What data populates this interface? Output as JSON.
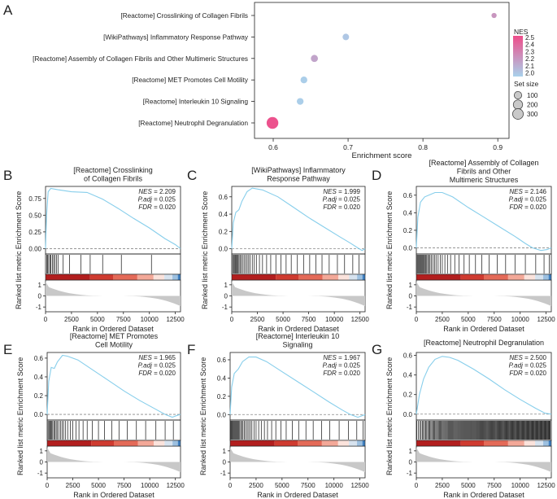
{
  "panel_letters": [
    "A",
    "B",
    "C",
    "D",
    "E",
    "F",
    "G"
  ],
  "colors": {
    "line": "#87ceeb",
    "nes_low": "#a9d2ec",
    "nes_high": "#ee4d8a",
    "axis": "#222222",
    "zero_line": "#888888",
    "heat": [
      "#b21e1e",
      "#cf3b30",
      "#e46a58",
      "#f3a898",
      "#fbe3dc",
      "#d7e3ef",
      "#9cc0e0",
      "#3f7fc0"
    ],
    "metric_fill": "#c8c8c8"
  },
  "chart_data": [
    {
      "id": "A",
      "type": "scatter",
      "title": "",
      "xlabel": "Enrichment score",
      "ylabel": "",
      "xlim": [
        0.575,
        0.915
      ],
      "xticks": [
        0.6,
        0.7,
        0.8,
        0.9
      ],
      "xtick_labels": [
        "0.6",
        "0.7",
        "0.8",
        "0.9"
      ],
      "categories": [
        "[Reactome] Crosslinking of Collagen Fibrils",
        "[WikiPathways] Inflammatory Response Pathway",
        "[Reactome] Assembly of Collagen Fibrils and Other Multimeric Structures",
        "[Reactome] MET Promotes Cell Motility",
        "[Reactome] Interleukin 10 Signaling",
        "[Reactome] Neutrophil Degranulation"
      ],
      "x": [
        0.895,
        0.697,
        0.655,
        0.641,
        0.636,
        0.599
      ],
      "nes": [
        2.209,
        1.999,
        2.146,
        1.965,
        1.967,
        2.5
      ],
      "set_size": [
        12,
        40,
        58,
        48,
        47,
        310
      ],
      "color_legend": {
        "title": "NES",
        "ticks": [
          2.5,
          2.4,
          2.3,
          2.2,
          2.1,
          2.0
        ],
        "tick_labels": [
          "2.5",
          "2.4",
          "2.3",
          "2.2",
          "2.1",
          "2.0"
        ],
        "range": [
          1.95,
          2.52
        ]
      },
      "size_legend": {
        "title": "Set size",
        "values": [
          100,
          200,
          300
        ],
        "labels": [
          "100",
          "200",
          "300"
        ]
      }
    },
    {
      "id": "B",
      "type": "line",
      "title_lines": [
        "[Reactome] Crosslinking",
        "of Collagen Fibrils"
      ],
      "ylabel": "Enrichment Score",
      "ylabel2": "Ranked list metric",
      "xlabel": "Rank in Ordered Dataset",
      "ylim": [
        -0.08,
        0.93
      ],
      "yticks": [
        0,
        0.25,
        0.5,
        0.75
      ],
      "ytick_labels": [
        "0.00",
        "0.25",
        "0.50",
        "0.75"
      ],
      "xlim": [
        0,
        13000
      ],
      "xticks": [
        0,
        2500,
        5000,
        7500,
        10000,
        12500
      ],
      "xtick_labels": [
        "0",
        "2500",
        "5000",
        "7500",
        "10000",
        "12500"
      ],
      "metric_ticks": [
        "1",
        "0",
        "-1"
      ],
      "stats": [
        {
          "label": "NES",
          "value": "2.209"
        },
        {
          "label": "P.adj",
          "value": "0.025"
        },
        {
          "label": "FDR",
          "value": "0.020"
        }
      ],
      "curve": [
        [
          0,
          0
        ],
        [
          100,
          0.5
        ],
        [
          250,
          0.85
        ],
        [
          500,
          0.9
        ],
        [
          1200,
          0.88
        ],
        [
          2500,
          0.85
        ],
        [
          4000,
          0.84
        ],
        [
          5500,
          0.74
        ],
        [
          7000,
          0.6
        ],
        [
          8500,
          0.45
        ],
        [
          10000,
          0.31
        ],
        [
          11500,
          0.15
        ],
        [
          12500,
          0.06
        ],
        [
          13000,
          0
        ]
      ],
      "hits": [
        110,
        200,
        300,
        420,
        520,
        650,
        780,
        900,
        1050,
        1200,
        1700,
        2300,
        3400,
        4300,
        5500,
        7300,
        10200
      ]
    },
    {
      "id": "C",
      "type": "line",
      "title_lines": [
        "[WikiPathways] Inflammatory",
        "Response Pathway"
      ],
      "ylabel": "Enrichment Score",
      "ylabel2": "Ranked list metric",
      "xlabel": "Rank in Ordered Dataset",
      "ylim": [
        -0.06,
        0.72
      ],
      "yticks": [
        0,
        0.2,
        0.4,
        0.6
      ],
      "ytick_labels": [
        "0.0",
        "0.2",
        "0.4",
        "0.6"
      ],
      "xlim": [
        0,
        13000
      ],
      "xticks": [
        0,
        2500,
        5000,
        7500,
        10000,
        12500
      ],
      "xtick_labels": [
        "0",
        "2500",
        "5000",
        "7500",
        "10000",
        "12500"
      ],
      "metric_ticks": [
        "1",
        "0",
        "-1"
      ],
      "stats": [
        {
          "label": "NES",
          "value": "1.999"
        },
        {
          "label": "P.adj",
          "value": "0.025"
        },
        {
          "label": "FDR",
          "value": "0.020"
        }
      ],
      "curve": [
        [
          0,
          0
        ],
        [
          150,
          0.3
        ],
        [
          400,
          0.42
        ],
        [
          700,
          0.45
        ],
        [
          1000,
          0.55
        ],
        [
          1500,
          0.66
        ],
        [
          2000,
          0.7
        ],
        [
          3000,
          0.68
        ],
        [
          4500,
          0.6
        ],
        [
          6000,
          0.48
        ],
        [
          7500,
          0.36
        ],
        [
          9000,
          0.25
        ],
        [
          10500,
          0.14
        ],
        [
          11500,
          0.07
        ],
        [
          12300,
          0.01
        ],
        [
          12700,
          -0.02
        ],
        [
          13000,
          0
        ]
      ],
      "hits": [
        90,
        180,
        260,
        350,
        420,
        500,
        580,
        700,
        800,
        920,
        1050,
        1200,
        1350,
        1500,
        1650,
        1800,
        2000,
        2200,
        2400,
        2700,
        3000,
        3400,
        3800,
        4300,
        4800,
        5300,
        5800,
        6400,
        7000,
        7600,
        8200,
        8800,
        9500,
        10300,
        11000,
        11800,
        12400
      ]
    },
    {
      "id": "D",
      "type": "line",
      "title_lines": [
        "[Reactome] Assembly of Collagen",
        "Fibrils and Other",
        "Multimeric Structures"
      ],
      "ylabel": "Enrichment Score",
      "ylabel2": "Ranked list metric",
      "xlabel": "Rank in Ordered Dataset",
      "ylim": [
        -0.07,
        0.7
      ],
      "yticks": [
        0,
        0.2,
        0.4,
        0.6
      ],
      "ytick_labels": [
        "0.0",
        "0.2",
        "0.4",
        "0.6"
      ],
      "xlim": [
        0,
        13000
      ],
      "xticks": [
        0,
        2500,
        5000,
        7500,
        10000,
        12500
      ],
      "xtick_labels": [
        "0",
        "2500",
        "5000",
        "7500",
        "10000",
        "12500"
      ],
      "metric_ticks": [
        "1",
        "0",
        "-1"
      ],
      "stats": [
        {
          "label": "NES",
          "value": "2.146"
        },
        {
          "label": "P.adj",
          "value": "0.025"
        },
        {
          "label": "FDR",
          "value": "0.020"
        }
      ],
      "curve": [
        [
          0,
          0
        ],
        [
          150,
          0.35
        ],
        [
          400,
          0.52
        ],
        [
          800,
          0.58
        ],
        [
          1200,
          0.6
        ],
        [
          1800,
          0.63
        ],
        [
          2500,
          0.63
        ],
        [
          3500,
          0.58
        ],
        [
          5000,
          0.46
        ],
        [
          6500,
          0.35
        ],
        [
          8000,
          0.24
        ],
        [
          9500,
          0.13
        ],
        [
          10500,
          0.05
        ],
        [
          11200,
          0.0
        ],
        [
          12000,
          -0.03
        ],
        [
          12600,
          -0.02
        ],
        [
          13000,
          0
        ]
      ],
      "hits": [
        80,
        160,
        240,
        320,
        400,
        480,
        560,
        640,
        720,
        800,
        900,
        1000,
        1100,
        1200,
        1320,
        1450,
        1600,
        1750,
        1900,
        2100,
        2300,
        2500,
        2750,
        3000,
        3300,
        3700,
        4100,
        4600,
        5100,
        5700,
        6300,
        7000,
        7800,
        8600,
        9500,
        10500,
        11500,
        12300,
        12800
      ]
    },
    {
      "id": "E",
      "type": "line",
      "title_lines": [
        "[Reactome] MET Promotes",
        "Cell Motility"
      ],
      "ylabel": "Enrichment Score",
      "ylabel2": "Ranked list metric",
      "xlabel": "Rank in Ordered Dataset",
      "ylim": [
        -0.06,
        0.66
      ],
      "yticks": [
        0,
        0.2,
        0.4,
        0.6
      ],
      "ytick_labels": [
        "0.0",
        "0.2",
        "0.4",
        "0.6"
      ],
      "xlim": [
        0,
        13000
      ],
      "xticks": [
        0,
        2500,
        5000,
        7500,
        10000,
        12500
      ],
      "xtick_labels": [
        "0",
        "2500",
        "5000",
        "7500",
        "10000",
        "12500"
      ],
      "metric_ticks": [
        "1",
        "0",
        "-1"
      ],
      "stats": [
        {
          "label": "NES",
          "value": "1.965"
        },
        {
          "label": "P.adj",
          "value": "0.025"
        },
        {
          "label": "FDR",
          "value": "0.020"
        }
      ],
      "curve": [
        [
          0,
          0
        ],
        [
          150,
          0.35
        ],
        [
          400,
          0.5
        ],
        [
          700,
          0.49
        ],
        [
          1000,
          0.56
        ],
        [
          1500,
          0.63
        ],
        [
          2000,
          0.62
        ],
        [
          3000,
          0.58
        ],
        [
          4500,
          0.47
        ],
        [
          6000,
          0.36
        ],
        [
          7500,
          0.25
        ],
        [
          9000,
          0.15
        ],
        [
          10500,
          0.06
        ],
        [
          11500,
          0.0
        ],
        [
          12200,
          -0.03
        ],
        [
          12700,
          -0.01
        ],
        [
          13000,
          0
        ]
      ],
      "hits": [
        90,
        180,
        270,
        360,
        450,
        540,
        650,
        760,
        880,
        1000,
        1150,
        1300,
        1450,
        1600,
        1800,
        2000,
        2250,
        2500,
        2800,
        3100,
        3500,
        3900,
        4400,
        5000,
        5600,
        6300,
        7000,
        7800,
        8700,
        9600,
        10600,
        11500,
        12300
      ]
    },
    {
      "id": "F",
      "type": "line",
      "title_lines": [
        "[Reactome] Interleukin 10",
        "Signaling"
      ],
      "ylabel": "Enrichment Score",
      "ylabel2": "Ranked list metric",
      "xlabel": "Rank in Ordered Dataset",
      "ylim": [
        -0.06,
        0.68
      ],
      "yticks": [
        0,
        0.2,
        0.4,
        0.6
      ],
      "ytick_labels": [
        "0.0",
        "0.2",
        "0.4",
        "0.6"
      ],
      "xlim": [
        0,
        13000
      ],
      "xticks": [
        0,
        2500,
        5000,
        7500,
        10000,
        12500
      ],
      "xtick_labels": [
        "0",
        "2500",
        "5000",
        "7500",
        "10000",
        "12500"
      ],
      "metric_ticks": [
        "1",
        "0",
        "-1"
      ],
      "stats": [
        {
          "label": "NES",
          "value": "1.967"
        },
        {
          "label": "P.adj",
          "value": "0.025"
        },
        {
          "label": "FDR",
          "value": "0.020"
        }
      ],
      "curve": [
        [
          0,
          0
        ],
        [
          150,
          0.3
        ],
        [
          400,
          0.45
        ],
        [
          800,
          0.5
        ],
        [
          1200,
          0.58
        ],
        [
          1800,
          0.63
        ],
        [
          2500,
          0.63
        ],
        [
          3500,
          0.58
        ],
        [
          5000,
          0.47
        ],
        [
          6500,
          0.36
        ],
        [
          8000,
          0.25
        ],
        [
          9500,
          0.14
        ],
        [
          10800,
          0.05
        ],
        [
          11600,
          0.0
        ],
        [
          12300,
          -0.03
        ],
        [
          13000,
          0
        ]
      ],
      "hits": [
        70,
        140,
        210,
        280,
        350,
        420,
        500,
        580,
        660,
        740,
        820,
        920,
        1020,
        1120,
        1240,
        1360,
        1500,
        1650,
        1800,
        1950,
        2100,
        2300,
        2500,
        2750,
        3000,
        3300,
        3600,
        4000,
        4400,
        4900,
        5400,
        6000,
        6600,
        7300,
        8000,
        8800,
        9600,
        10500,
        11400,
        12200,
        12800
      ]
    },
    {
      "id": "G",
      "type": "line",
      "title_lines": [
        "[Reactome] Neutrophil Degranulation"
      ],
      "ylabel": "Enrichment Score",
      "ylabel2": "Ranked list metric",
      "xlabel": "Rank in Ordered Dataset",
      "ylim": [
        -0.06,
        0.63
      ],
      "yticks": [
        0,
        0.2,
        0.4,
        0.6
      ],
      "ytick_labels": [
        "0.0",
        "0.2",
        "0.4",
        "0.6"
      ],
      "xlim": [
        0,
        13000
      ],
      "xticks": [
        0,
        2500,
        5000,
        7500,
        10000,
        12500
      ],
      "xtick_labels": [
        "0",
        "2500",
        "5000",
        "7500",
        "10000",
        "12500"
      ],
      "metric_ticks": [
        "1",
        "0",
        "-1"
      ],
      "stats": [
        {
          "label": "NES",
          "value": "2.500"
        },
        {
          "label": "P.adj",
          "value": "0.025"
        },
        {
          "label": "FDR",
          "value": "0.020"
        }
      ],
      "curve": [
        [
          0,
          0
        ],
        [
          300,
          0.2
        ],
        [
          700,
          0.36
        ],
        [
          1200,
          0.48
        ],
        [
          1800,
          0.56
        ],
        [
          2500,
          0.59
        ],
        [
          3200,
          0.58
        ],
        [
          4000,
          0.55
        ],
        [
          5500,
          0.46
        ],
        [
          7000,
          0.36
        ],
        [
          8500,
          0.25
        ],
        [
          10000,
          0.15
        ],
        [
          11500,
          0.06
        ],
        [
          12400,
          0.01
        ],
        [
          13000,
          0
        ]
      ],
      "hits_uniform": {
        "start": 40,
        "end": 12900,
        "count": 170
      }
    }
  ]
}
